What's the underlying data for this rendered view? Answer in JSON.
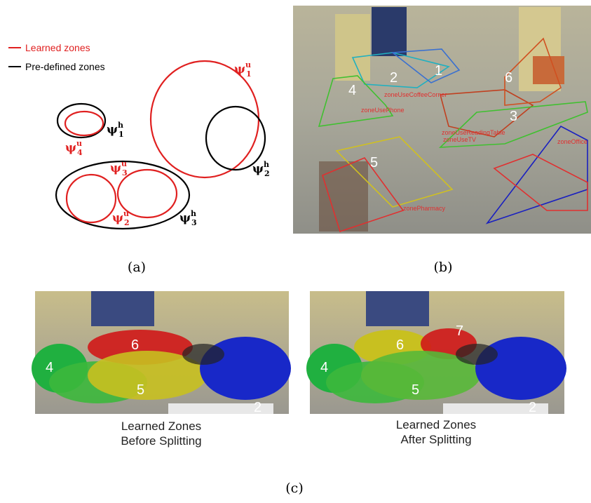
{
  "legend": {
    "items": [
      "Learned zones",
      "Pre-defined zones"
    ]
  },
  "diagram": {
    "labels": [
      {
        "symbol": "ψ",
        "sup": "u",
        "sub": "1"
      },
      {
        "symbol": "ψ",
        "sup": "h",
        "sub": "1"
      },
      {
        "symbol": "ψ",
        "sup": "u",
        "sub": "4"
      },
      {
        "symbol": "ψ",
        "sup": "h",
        "sub": "2"
      },
      {
        "symbol": "ψ",
        "sup": "u",
        "sub": "3"
      },
      {
        "symbol": "ψ",
        "sup": "u",
        "sub": "2"
      },
      {
        "symbol": "ψ",
        "sup": "h",
        "sub": "3"
      }
    ]
  },
  "panels": {
    "a": "(a)",
    "b": "(b)",
    "c": "(c)"
  },
  "photo_b": {
    "numbers": [
      "1",
      "2",
      "3",
      "4",
      "5",
      "6"
    ],
    "zones": [
      "zoneUseCoffeeCorner",
      "zoneUsePhone",
      "zoneUseReadingTable",
      "zoneUseTV",
      "zonePharmacy",
      "zoneOffice"
    ]
  },
  "photo_c": {
    "before": {
      "caption": [
        "Learned Zones",
        "Before Splitting"
      ],
      "numbers": [
        "4",
        "6",
        "5",
        "2"
      ]
    },
    "after": {
      "caption": [
        "Learned Zones",
        "After Splitting"
      ],
      "numbers": [
        "4",
        "6",
        "7",
        "5",
        "2"
      ]
    }
  }
}
